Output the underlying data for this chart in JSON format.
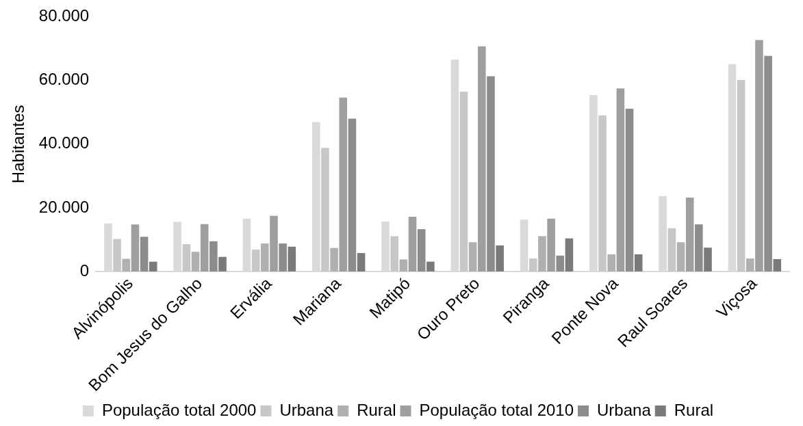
{
  "chart_data": {
    "type": "bar",
    "ylabel": "Habitantes",
    "categories": [
      "Alvinópolis",
      "Bom Jesus do Galho",
      "Ervália",
      "Mariana",
      "Matipó",
      "Ouro Preto",
      "Piranga",
      "Ponte Nova",
      "Raul Soares",
      "Viçosa"
    ],
    "series": [
      {
        "name": "População total 2000",
        "color": "#d9d9d9",
        "values": [
          15100,
          15600,
          16600,
          46900,
          15700,
          66500,
          16300,
          55400,
          23700,
          65100
        ]
      },
      {
        "name": "Urbana",
        "color": "#c7c7c7",
        "values": [
          10200,
          8600,
          6900,
          38800,
          11100,
          56500,
          4100,
          49000,
          13600,
          60100
        ]
      },
      {
        "name": "Rural",
        "color": "#b0b0b0",
        "values": [
          4000,
          6200,
          8800,
          7400,
          3800,
          9200,
          11100,
          5400,
          9200,
          4100
        ]
      },
      {
        "name": "População total 2010",
        "color": "#9f9f9f",
        "values": [
          14800,
          14900,
          17500,
          54600,
          17200,
          70700,
          16600,
          57500,
          23200,
          72700
        ]
      },
      {
        "name": "Urbana",
        "color": "#8c8c8c",
        "values": [
          10900,
          9500,
          8800,
          48000,
          13300,
          61300,
          5000,
          51100,
          14800,
          67700
        ]
      },
      {
        "name": "Rural",
        "color": "#7a7a7a",
        "values": [
          3100,
          4600,
          7800,
          5800,
          3100,
          8200,
          10400,
          5400,
          7500,
          3900
        ]
      }
    ],
    "ylim": [
      0,
      80000
    ],
    "yticks": [
      {
        "value": 0,
        "label": "0"
      },
      {
        "value": 20000,
        "label": "20.000"
      },
      {
        "value": 40000,
        "label": "40.000"
      },
      {
        "value": 60000,
        "label": "60.000"
      },
      {
        "value": 80000,
        "label": "80.000"
      }
    ],
    "grid": false,
    "legend": "bottom"
  }
}
